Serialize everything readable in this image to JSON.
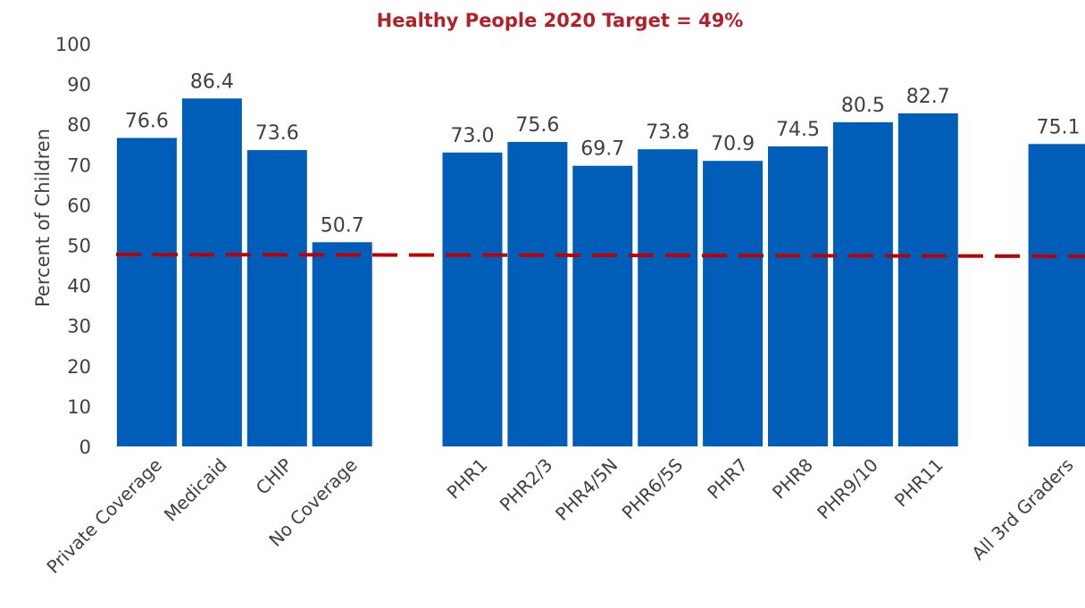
{
  "chart_data": {
    "type": "bar",
    "title": "Healthy People 2020 Target = 49%",
    "ylabel": "Percent of Children",
    "xlabel": "",
    "ylim": [
      0,
      100
    ],
    "yticks": [
      0,
      10,
      20,
      30,
      40,
      50,
      60,
      70,
      80,
      90,
      100
    ],
    "grid": false,
    "legend": "none",
    "categories": [
      "Private Coverage",
      "Medicaid",
      "CHIP",
      "No Coverage",
      "PHR1",
      "PHR2/3",
      "PHR4/5N",
      "PHR6/5S",
      "PHR7",
      "PHR8",
      "PHR9/10",
      "PHR11",
      "All 3rd Graders"
    ],
    "values": [
      76.6,
      86.4,
      73.6,
      50.7,
      73.0,
      75.6,
      69.7,
      73.8,
      70.9,
      74.5,
      80.5,
      82.7,
      75.1
    ],
    "value_labels": [
      "76.6",
      "86.4",
      "73.6",
      "50.7",
      "73.0",
      "75.6",
      "69.7",
      "73.8",
      "70.9",
      "74.5",
      "80.5",
      "82.7",
      "75.1"
    ],
    "groups": [
      [
        "Private Coverage",
        "Medicaid",
        "CHIP",
        "No Coverage"
      ],
      [
        "PHR1",
        "PHR2/3",
        "PHR4/5N",
        "PHR6/5S",
        "PHR7",
        "PHR8",
        "PHR9/10",
        "PHR11"
      ],
      [
        "All 3rd Graders"
      ]
    ],
    "reference_line": {
      "value": 49,
      "style": "dashed"
    },
    "colors": {
      "bar": "#005EB8",
      "reference_line": "#C00000",
      "title": "#B22028",
      "text": "#404040"
    }
  }
}
